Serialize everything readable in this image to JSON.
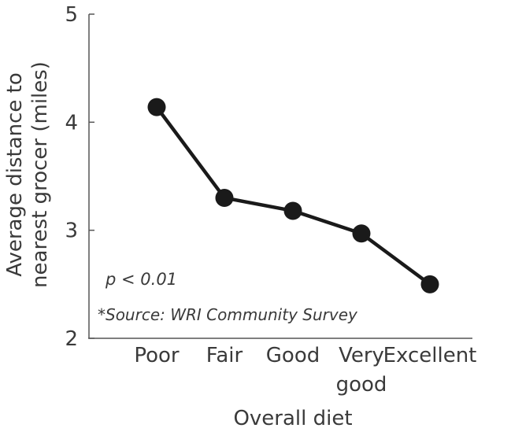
{
  "chart_data": {
    "type": "line",
    "categories": [
      "Poor",
      "Fair",
      "Good",
      "Very good",
      "Excellent"
    ],
    "category_lines": [
      [
        "Poor"
      ],
      [
        "Fair"
      ],
      [
        "Good"
      ],
      [
        "Very",
        "good"
      ],
      [
        "Excellent"
      ]
    ],
    "series": [
      {
        "values": [
          4.14,
          3.3,
          3.18,
          2.97,
          2.5
        ]
      }
    ],
    "xlabel": "Overall diet",
    "ylabel_lines": [
      "Average distance to",
      "nearest grocer (miles)"
    ],
    "ylim": [
      2,
      5
    ],
    "yticks": [
      2,
      3,
      4,
      5
    ],
    "ytick_labels": [
      "2",
      "3",
      "4",
      "5"
    ],
    "grid": false,
    "legend": "none",
    "colors": {
      "line": "#1a1a1a",
      "axis": "#555555",
      "text": "#3a3a3a"
    },
    "annotations": [
      {
        "name": "p-value-note",
        "text": "p < 0.01"
      },
      {
        "name": "source-note",
        "text": "*Source: WRI Community Survey"
      }
    ]
  }
}
